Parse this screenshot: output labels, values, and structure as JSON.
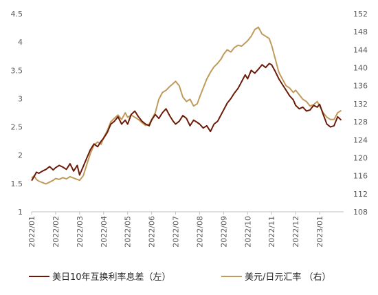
{
  "chart_data": {
    "type": "line",
    "title": "",
    "x_tick_labels": [
      "2022/01",
      "2022/02",
      "2022/03",
      "2022/04",
      "2022/05",
      "2022/06",
      "2022/07",
      "2022/08",
      "2022/09",
      "2022/10",
      "2022/11",
      "2022/12",
      "2023/01"
    ],
    "y_left": {
      "ylim": [
        1,
        4.5
      ],
      "ticks": [
        "1",
        "1.5",
        "2",
        "2.5",
        "3",
        "3.5",
        "4",
        "4.5"
      ]
    },
    "y_right": {
      "ylim": [
        108,
        152
      ],
      "ticks": [
        "108",
        "112",
        "116",
        "120",
        "124",
        "128",
        "132",
        "136",
        "140",
        "144",
        "148",
        "152"
      ]
    },
    "series": [
      {
        "name": "美日10年互换利率息差（左）",
        "axis": "left",
        "color": "#6B1A08",
        "x": [
          0,
          0.1,
          0.2,
          0.3,
          0.45,
          0.6,
          0.75,
          0.9,
          1.0,
          1.15,
          1.3,
          1.45,
          1.6,
          1.75,
          1.9,
          2.0,
          2.15,
          2.3,
          2.45,
          2.6,
          2.75,
          2.9,
          3.0,
          3.15,
          3.3,
          3.45,
          3.6,
          3.75,
          3.9,
          4.0,
          4.15,
          4.3,
          4.45,
          4.6,
          4.75,
          4.9,
          5.0,
          5.15,
          5.3,
          5.45,
          5.6,
          5.75,
          5.9,
          6.0,
          6.15,
          6.3,
          6.45,
          6.6,
          6.75,
          6.9,
          7.0,
          7.15,
          7.3,
          7.45,
          7.6,
          7.75,
          7.9,
          8.0,
          8.15,
          8.3,
          8.45,
          8.6,
          8.75,
          8.9,
          9.0,
          9.15,
          9.3,
          9.45,
          9.6,
          9.75,
          9.9,
          10.0,
          10.15,
          10.3,
          10.45,
          10.6,
          10.75,
          10.9,
          11.0,
          11.15,
          11.3,
          11.45,
          11.6,
          11.75,
          11.9,
          12.0,
          12.15,
          12.3,
          12.45,
          12.6,
          12.75,
          12.9
        ],
        "y": [
          1.55,
          1.62,
          1.7,
          1.68,
          1.72,
          1.75,
          1.8,
          1.74,
          1.78,
          1.82,
          1.79,
          1.75,
          1.85,
          1.72,
          1.82,
          1.65,
          1.8,
          1.95,
          2.1,
          2.2,
          2.15,
          2.25,
          2.3,
          2.4,
          2.55,
          2.6,
          2.68,
          2.55,
          2.62,
          2.55,
          2.72,
          2.78,
          2.68,
          2.6,
          2.55,
          2.52,
          2.62,
          2.72,
          2.65,
          2.75,
          2.82,
          2.7,
          2.6,
          2.55,
          2.6,
          2.7,
          2.65,
          2.52,
          2.62,
          2.58,
          2.55,
          2.48,
          2.52,
          2.42,
          2.55,
          2.6,
          2.72,
          2.8,
          2.92,
          3.0,
          3.1,
          3.18,
          3.3,
          3.42,
          3.35,
          3.5,
          3.45,
          3.52,
          3.6,
          3.55,
          3.62,
          3.6,
          3.48,
          3.35,
          3.25,
          3.15,
          3.05,
          2.98,
          2.88,
          2.82,
          2.85,
          2.78,
          2.8,
          2.88,
          2.85,
          2.9,
          2.72,
          2.55,
          2.5,
          2.52,
          2.68,
          2.62
        ]
      },
      {
        "name": "美元/日元汇率 （右）",
        "axis": "right",
        "color": "#C09A5B",
        "x": [
          0,
          0.1,
          0.2,
          0.3,
          0.45,
          0.6,
          0.75,
          0.9,
          1.0,
          1.15,
          1.3,
          1.45,
          1.6,
          1.75,
          1.9,
          2.0,
          2.15,
          2.3,
          2.45,
          2.6,
          2.75,
          2.9,
          3.0,
          3.15,
          3.3,
          3.45,
          3.6,
          3.75,
          3.9,
          4.0,
          4.15,
          4.3,
          4.45,
          4.6,
          4.75,
          4.9,
          5.0,
          5.15,
          5.3,
          5.45,
          5.6,
          5.75,
          5.9,
          6.0,
          6.15,
          6.3,
          6.45,
          6.6,
          6.75,
          6.9,
          7.0,
          7.15,
          7.3,
          7.45,
          7.6,
          7.75,
          7.9,
          8.0,
          8.15,
          8.3,
          8.45,
          8.6,
          8.75,
          8.9,
          9.0,
          9.15,
          9.3,
          9.45,
          9.6,
          9.75,
          9.9,
          10.0,
          10.15,
          10.3,
          10.45,
          10.6,
          10.75,
          10.9,
          11.0,
          11.15,
          11.3,
          11.45,
          11.6,
          11.75,
          11.9,
          12.0,
          12.15,
          12.3,
          12.45,
          12.6,
          12.75,
          12.9
        ],
        "y": [
          115.5,
          116.0,
          115.2,
          114.8,
          114.5,
          114.2,
          114.6,
          115.0,
          115.4,
          115.2,
          115.6,
          115.3,
          115.8,
          115.5,
          115.2,
          115.0,
          116.0,
          118.5,
          121.0,
          122.8,
          123.5,
          123.0,
          124.5,
          126.0,
          128.0,
          128.8,
          129.5,
          128.5,
          130.0,
          129.0,
          129.5,
          129.0,
          128.5,
          127.8,
          127.2,
          127.5,
          128.5,
          130.0,
          133.0,
          134.5,
          135.0,
          135.8,
          136.5,
          137.0,
          136.0,
          133.5,
          132.5,
          133.0,
          131.5,
          132.0,
          133.5,
          135.5,
          137.5,
          139.0,
          140.2,
          141.0,
          142.0,
          143.0,
          144.0,
          143.5,
          144.5,
          145.0,
          144.8,
          145.5,
          146.0,
          147.0,
          148.5,
          149.0,
          147.5,
          147.0,
          146.5,
          145.0,
          142.0,
          139.0,
          137.5,
          136.0,
          135.5,
          134.5,
          135.0,
          134.0,
          133.0,
          132.5,
          131.5,
          131.8,
          132.5,
          131.5,
          130.0,
          129.0,
          128.5,
          128.5,
          130.0,
          130.5
        ]
      }
    ]
  }
}
